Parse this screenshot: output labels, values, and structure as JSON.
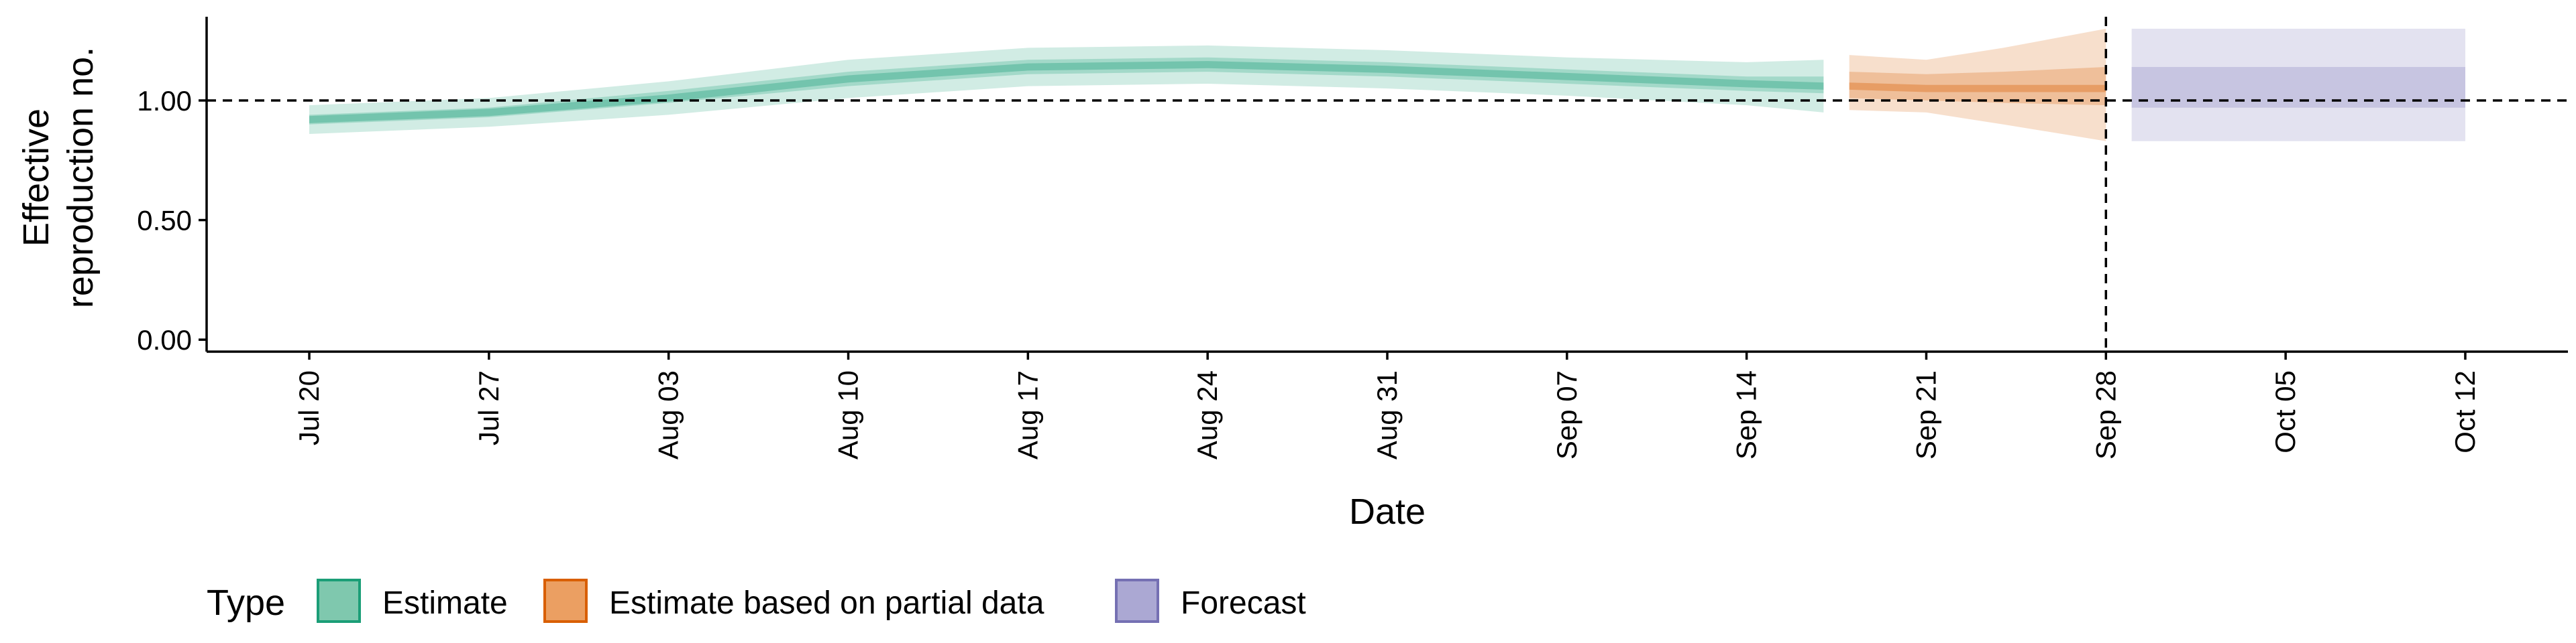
{
  "chart_data": {
    "type": "area",
    "xlabel": "Date",
    "ylabel_lines": [
      "Effective",
      "reproduction no."
    ],
    "x_ticks": [
      "Jul 20",
      "Jul 27",
      "Aug 03",
      "Aug 10",
      "Aug 17",
      "Aug 24",
      "Aug 31",
      "Sep 07",
      "Sep 14",
      "Sep 21",
      "Sep 28",
      "Oct 05",
      "Oct 12"
    ],
    "y_ticks": [
      "0.00",
      "0.50",
      "1.00"
    ],
    "ylim": [
      -0.05,
      1.35
    ],
    "xlim": [
      "2020-07-16",
      "2020-10-16"
    ],
    "reference_lines": {
      "y": 1.0,
      "x": "2020-09-28"
    },
    "legend": {
      "title": "Type",
      "position": "bottom-left",
      "items": [
        {
          "label": "Estimate",
          "fill": "#7FC8AE",
          "stroke": "#1B9E77"
        },
        {
          "label": "Estimate based on partial data",
          "fill": "#EB9F62",
          "stroke": "#D95F02"
        },
        {
          "label": "Forecast",
          "fill": "#ABA8D3",
          "stroke": "#7570B3"
        }
      ]
    },
    "series": [
      {
        "name": "Estimate",
        "color": "#1B9E77",
        "points": [
          {
            "date": "2020-07-20",
            "median": 0.92,
            "lower_90": 0.86,
            "upper_90": 0.98,
            "lower_50": 0.9,
            "upper_50": 0.94
          },
          {
            "date": "2020-07-27",
            "median": 0.95,
            "lower_90": 0.89,
            "upper_90": 1.01,
            "lower_50": 0.93,
            "upper_50": 0.97
          },
          {
            "date": "2020-08-03",
            "median": 1.01,
            "lower_90": 0.94,
            "upper_90": 1.08,
            "lower_50": 0.99,
            "upper_50": 1.04
          },
          {
            "date": "2020-08-10",
            "median": 1.09,
            "lower_90": 1.01,
            "upper_90": 1.17,
            "lower_50": 1.06,
            "upper_50": 1.12
          },
          {
            "date": "2020-08-17",
            "median": 1.14,
            "lower_90": 1.06,
            "upper_90": 1.22,
            "lower_50": 1.11,
            "upper_50": 1.17
          },
          {
            "date": "2020-08-24",
            "median": 1.15,
            "lower_90": 1.07,
            "upper_90": 1.23,
            "lower_50": 1.12,
            "upper_50": 1.18
          },
          {
            "date": "2020-08-31",
            "median": 1.13,
            "lower_90": 1.05,
            "upper_90": 1.21,
            "lower_50": 1.1,
            "upper_50": 1.16
          },
          {
            "date": "2020-09-07",
            "median": 1.1,
            "lower_90": 1.02,
            "upper_90": 1.18,
            "lower_50": 1.07,
            "upper_50": 1.13
          },
          {
            "date": "2020-09-14",
            "median": 1.07,
            "lower_90": 0.98,
            "upper_90": 1.16,
            "lower_50": 1.04,
            "upper_50": 1.1
          },
          {
            "date": "2020-09-17",
            "median": 1.06,
            "lower_90": 0.95,
            "upper_90": 1.17,
            "lower_50": 1.03,
            "upper_50": 1.1
          }
        ]
      },
      {
        "name": "Estimate based on partial data",
        "color": "#D95F02",
        "points": [
          {
            "date": "2020-09-18",
            "median": 1.06,
            "lower_90": 0.96,
            "upper_90": 1.19,
            "lower_50": 1.01,
            "upper_50": 1.12
          },
          {
            "date": "2020-09-21",
            "median": 1.05,
            "lower_90": 0.95,
            "upper_90": 1.17,
            "lower_50": 1.0,
            "upper_50": 1.11
          },
          {
            "date": "2020-09-24",
            "median": 1.05,
            "lower_90": 0.9,
            "upper_90": 1.22,
            "lower_50": 0.99,
            "upper_50": 1.12
          },
          {
            "date": "2020-09-28",
            "median": 1.05,
            "lower_90": 0.83,
            "upper_90": 1.3,
            "lower_50": 0.98,
            "upper_50": 1.14
          }
        ]
      },
      {
        "name": "Forecast",
        "color": "#7570B3",
        "points": [
          {
            "date": "2020-09-29",
            "median": 1.05,
            "lower_90": 0.83,
            "upper_90": 1.3,
            "lower_50": 0.97,
            "upper_50": 1.14
          },
          {
            "date": "2020-10-12",
            "median": 1.05,
            "lower_90": 0.83,
            "upper_90": 1.3,
            "lower_50": 0.97,
            "upper_50": 1.14
          }
        ]
      }
    ]
  }
}
